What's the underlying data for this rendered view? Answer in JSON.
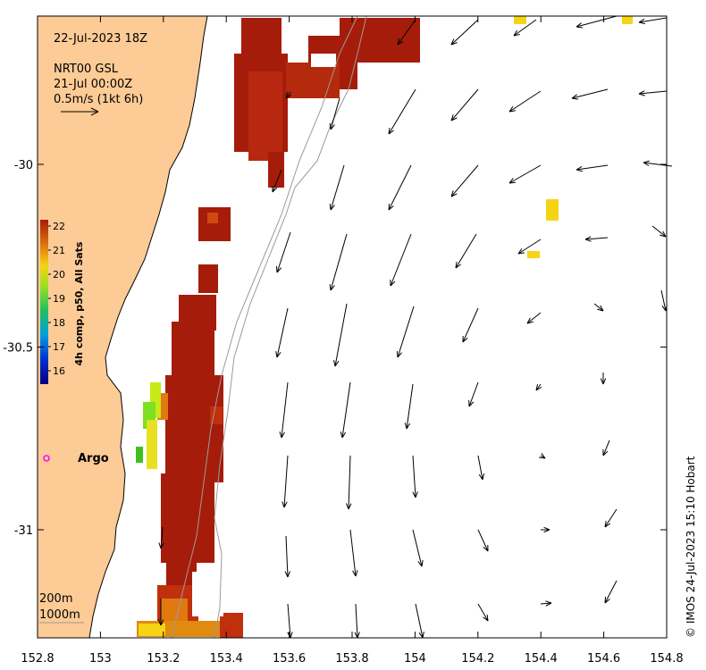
{
  "map": {
    "date_line": "22-Jul-2023 18Z",
    "product_line": "NRT00 GSL",
    "time_line": "21-Jul 00:00Z",
    "scale_line": "0.5m/s (1kt 6h)",
    "argo_label": "Argo",
    "contour_labels": [
      "200m",
      "1000m"
    ],
    "credit": "© IMOS 24-Jul-2023 15:10 Hobart",
    "x_ticks": [
      "152.8",
      "153",
      "153.2",
      "153.4",
      "153.6",
      "153.8",
      "154",
      "154.2",
      "154.4",
      "154.6",
      "154.8"
    ],
    "y_ticks": [
      "-30",
      "-30.5",
      "-31"
    ],
    "colorbar": {
      "label": "4h comp, p50, All Sats",
      "ticks": [
        "22",
        "21",
        "20",
        "19",
        "18",
        "17",
        "16"
      ],
      "range": [
        15.5,
        22.3
      ]
    },
    "colors": {
      "land": "#fdcb96",
      "sst_warm": "#a61c0a",
      "sst_mid": "#c0300c",
      "sst_orange": "#e07a10",
      "sst_yellow": "#f5d414",
      "sst_green": "#7de020",
      "argo_marker": "#ff00ff"
    }
  }
}
